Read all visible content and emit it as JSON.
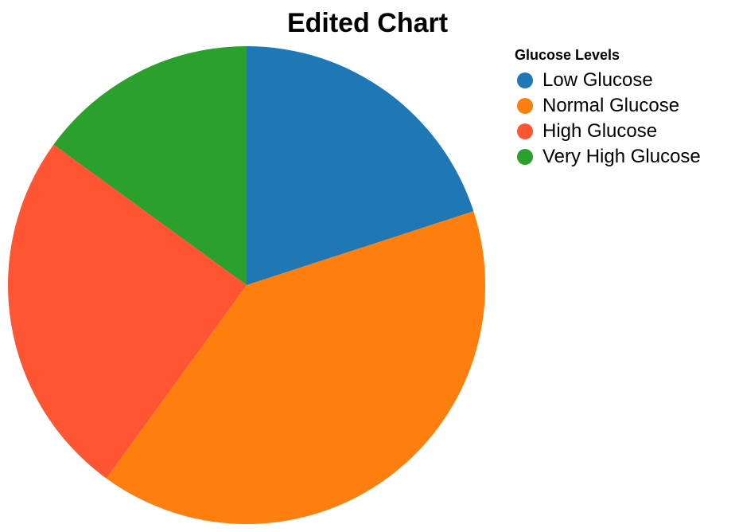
{
  "chart_data": {
    "type": "pie",
    "title": "Edited Chart",
    "legend_title": "Glucose Levels",
    "legend_position": "top-right",
    "categories": [
      "Low Glucose",
      "Normal Glucose",
      "High Glucose",
      "Very High Glucose"
    ],
    "values": [
      20,
      40,
      25,
      15
    ],
    "colors": [
      "#1f77b4",
      "#ff7f0e",
      "#ff5533",
      "#2ca02c"
    ]
  }
}
